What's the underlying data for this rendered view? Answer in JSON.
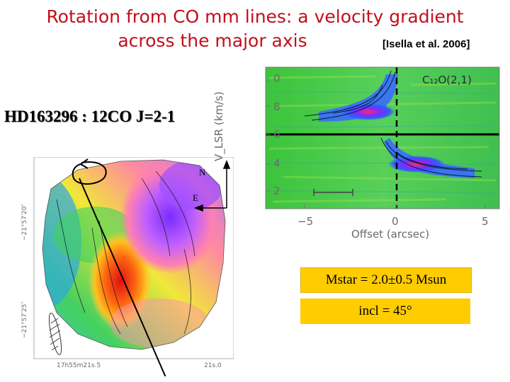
{
  "slide": {
    "title_line1": "Rotation from CO mm lines: a velocity gradient",
    "title_line2": "across the major axis",
    "citation": "[Isella et al. 2006]",
    "object_label": "HD163296 : 12CO J=2-1",
    "mstar": "Mstar = 2.0±0.5 Msun",
    "incl": "incl = 45°"
  },
  "map": {
    "north_label": "N",
    "east_label": "E",
    "dec_tick_top": "−21°57′20″",
    "dec_tick_bottom": "−21°57′25″",
    "ra_tick_left": "17h55m21s.5",
    "ra_tick_right": "21s.0"
  },
  "pv_diagram": {
    "molecule_label": "C₁₂O(2,1)",
    "yaxis_label": "V_LSR (km/s)",
    "xaxis_label": "Offset (arcsec)",
    "y_ticks": [
      "0",
      "8",
      "6",
      "4",
      "2"
    ],
    "x_ticks": [
      "−5",
      "0",
      "5"
    ]
  },
  "colors": {
    "title": "#c0101c",
    "box": "#ffcc00"
  }
}
